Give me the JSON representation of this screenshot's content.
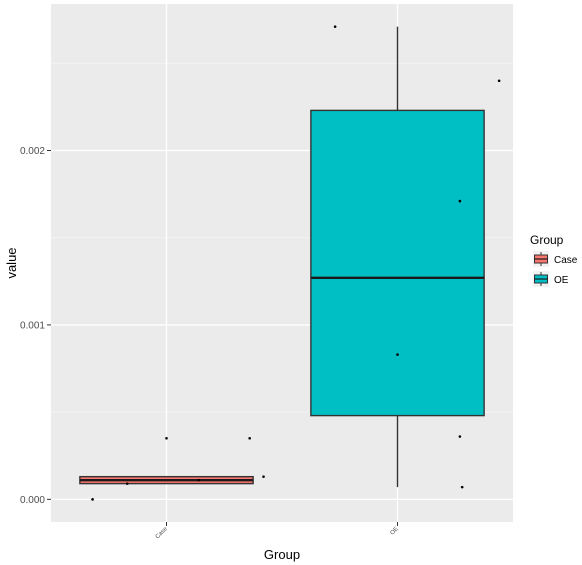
{
  "chart_data": {
    "type": "boxplot",
    "xlabel": "Group",
    "ylabel": "value",
    "categories": [
      "Case",
      "OE"
    ],
    "y_ticks": [
      {
        "value": 0.0,
        "label": "0.000"
      },
      {
        "value": 0.001,
        "label": "0.001"
      },
      {
        "value": 0.002,
        "label": "0.002"
      }
    ],
    "ylim": [
      -0.00013,
      0.00284
    ],
    "grid": true,
    "legend": {
      "title": "Group",
      "placement": "right",
      "entries": [
        {
          "label": "Case",
          "color": "#F8766D"
        },
        {
          "label": "OE",
          "color": "#00BFC4"
        }
      ]
    },
    "boxes": [
      {
        "name": "Case",
        "color": "#F8766D",
        "whisker_low": 9e-05,
        "q1": 9e-05,
        "median": 0.00011,
        "q3": 0.00013,
        "whisker_high": 0.00013
      },
      {
        "name": "OE",
        "color": "#00BFC4",
        "whisker_low": 7e-05,
        "q1": 0.00048,
        "median": 0.00127,
        "q3": 0.00223,
        "whisker_high": 0.00271
      }
    ],
    "points": [
      {
        "group": "Case",
        "offset": -0.32,
        "y": 0.0
      },
      {
        "group": "Case",
        "offset": -0.17,
        "y": 9e-05
      },
      {
        "group": "Case",
        "offset": 0.0,
        "y": 0.00035
      },
      {
        "group": "Case",
        "offset": 0.14,
        "y": 0.00011
      },
      {
        "group": "Case",
        "offset": 0.36,
        "y": 0.00035
      },
      {
        "group": "Case",
        "offset": 0.42,
        "y": 0.00013
      },
      {
        "group": "OE",
        "offset": -0.27,
        "y": 0.00271
      },
      {
        "group": "OE",
        "offset": 0.0,
        "y": 0.00083
      },
      {
        "group": "OE",
        "offset": 0.27,
        "y": 0.00171
      },
      {
        "group": "OE",
        "offset": 0.27,
        "y": 0.00036
      },
      {
        "group": "OE",
        "offset": 0.28,
        "y": 7e-05
      },
      {
        "group": "OE",
        "offset": 0.44,
        "y": 0.0024
      }
    ]
  }
}
